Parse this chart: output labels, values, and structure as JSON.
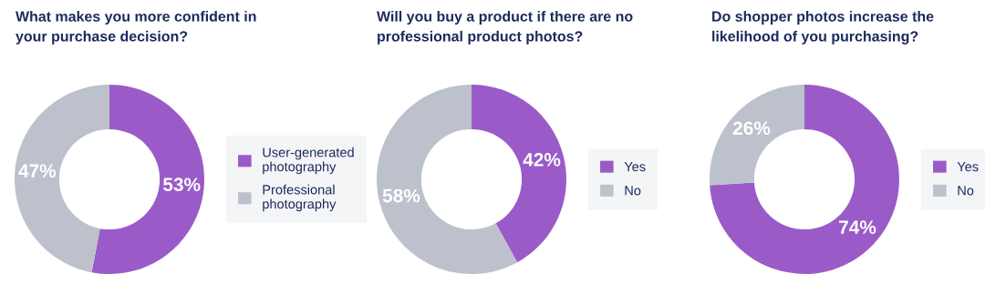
{
  "chart_data": [
    {
      "type": "donut",
      "title": "What makes you more confident in your purchase decision?",
      "categories": [
        "User-generated photography",
        "Professional photography"
      ],
      "values": [
        53,
        47
      ],
      "colors": [
        "#9a5bc8",
        "#bcc1cb"
      ],
      "value_labels": [
        "53%",
        "47%"
      ],
      "legend": "right"
    },
    {
      "type": "donut",
      "title": "Will you buy a product if there are no professional product photos?",
      "categories": [
        "Yes",
        "No"
      ],
      "values": [
        42,
        58
      ],
      "colors": [
        "#9a5bc8",
        "#bcc1cb"
      ],
      "value_labels": [
        "42%",
        "58%"
      ],
      "legend": "right"
    },
    {
      "type": "donut",
      "title": "Do shopper photos increase the likelihood of you purchasing?",
      "categories": [
        "Yes",
        "No"
      ],
      "values": [
        74,
        26
      ],
      "colors": [
        "#9a5bc8",
        "#bcc1cb"
      ],
      "value_labels": [
        "74%",
        "26%"
      ],
      "legend": "right"
    }
  ]
}
